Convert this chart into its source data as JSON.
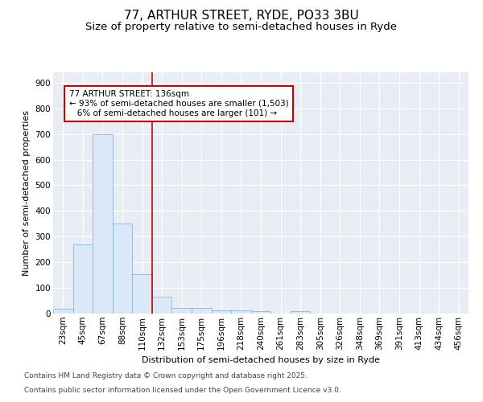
{
  "title1": "77, ARTHUR STREET, RYDE, PO33 3BU",
  "title2": "Size of property relative to semi-detached houses in Ryde",
  "xlabel": "Distribution of semi-detached houses by size in Ryde",
  "ylabel": "Number of semi-detached properties",
  "bar_color": "#dbe8f8",
  "bar_edge_color": "#8cb4e0",
  "bin_labels": [
    "23sqm",
    "45sqm",
    "67sqm",
    "88sqm",
    "110sqm",
    "132sqm",
    "153sqm",
    "175sqm",
    "196sqm",
    "218sqm",
    "240sqm",
    "261sqm",
    "283sqm",
    "305sqm",
    "326sqm",
    "348sqm",
    "369sqm",
    "391sqm",
    "413sqm",
    "434sqm",
    "456sqm"
  ],
  "bar_values": [
    20,
    270,
    700,
    350,
    155,
    65,
    22,
    22,
    12,
    12,
    10,
    0,
    8,
    0,
    0,
    0,
    0,
    0,
    0,
    0,
    0
  ],
  "vline_x_index": 5,
  "vline_color": "#cc0000",
  "annotation_line1": "77 ARTHUR STREET: 136sqm",
  "annotation_line2": "← 93% of semi-detached houses are smaller (1,503)",
  "annotation_line3": "   6% of semi-detached houses are larger (101) →",
  "annotation_box_color": "#cc0000",
  "ylim": [
    0,
    940
  ],
  "yticks": [
    0,
    100,
    200,
    300,
    400,
    500,
    600,
    700,
    800,
    900
  ],
  "bg_color": "#e8edf5",
  "grid_color": "#ffffff",
  "footer1": "Contains HM Land Registry data © Crown copyright and database right 2025.",
  "footer2": "Contains public sector information licensed under the Open Government Licence v3.0.",
  "title1_fontsize": 11,
  "title2_fontsize": 9.5,
  "axis_label_fontsize": 8,
  "tick_fontsize": 7.5,
  "annotation_fontsize": 7.5,
  "footer_fontsize": 6.5
}
